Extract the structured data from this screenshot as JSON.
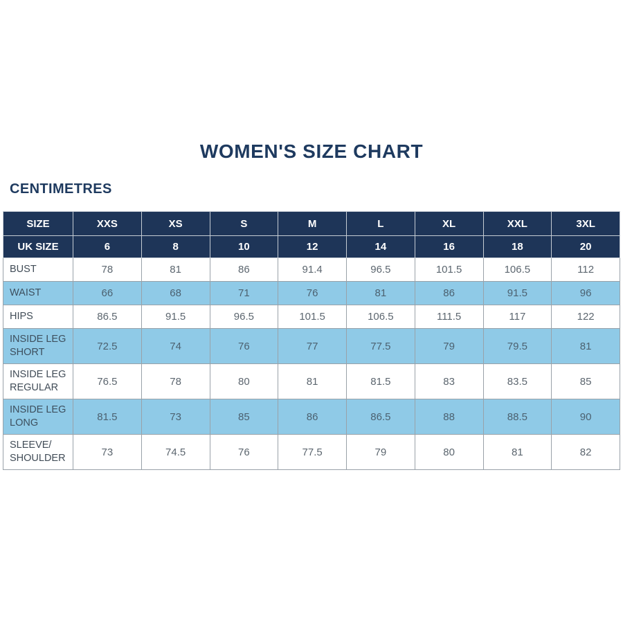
{
  "colors": {
    "header_navy": "#1e3558",
    "title_navy": "#1e3a5f",
    "highlight_blue": "#8fcae7",
    "grid_border": "#99a1a8"
  },
  "chart_data": {
    "type": "table",
    "title": "WOMEN'S SIZE CHART",
    "unit": "CENTIMETRES",
    "columns": [
      "SIZE",
      "XXS",
      "XS",
      "S",
      "M",
      "L",
      "XL",
      "XXL",
      "3XL"
    ],
    "uk_size_row": [
      "UK SIZE",
      "6",
      "8",
      "10",
      "12",
      "14",
      "16",
      "18",
      "20"
    ],
    "rows": [
      {
        "label": "BUST",
        "values": [
          "78",
          "81",
          "86",
          "91.4",
          "96.5",
          "101.5",
          "106.5",
          "112"
        ],
        "highlight": false
      },
      {
        "label": "WAIST",
        "values": [
          "66",
          "68",
          "71",
          "76",
          "81",
          "86",
          "91.5",
          "96"
        ],
        "highlight": true
      },
      {
        "label": "HIPS",
        "values": [
          "86.5",
          "91.5",
          "96.5",
          "101.5",
          "106.5",
          "111.5",
          "117",
          "122"
        ],
        "highlight": false
      },
      {
        "label": "INSIDE LEG SHORT",
        "values": [
          "72.5",
          "74",
          "76",
          "77",
          "77.5",
          "79",
          "79.5",
          "81"
        ],
        "highlight": true
      },
      {
        "label": "INSIDE LEG REGULAR",
        "values": [
          "76.5",
          "78",
          "80",
          "81",
          "81.5",
          "83",
          "83.5",
          "85"
        ],
        "highlight": false
      },
      {
        "label": "INSIDE LEG LONG",
        "values": [
          "81.5",
          "73",
          "85",
          "86",
          "86.5",
          "88",
          "88.5",
          "90"
        ],
        "highlight": true
      },
      {
        "label": "SLEEVE/ SHOULDER",
        "values": [
          "73",
          "74.5",
          "76",
          "77.5",
          "79",
          "80",
          "81",
          "82"
        ],
        "highlight": false
      }
    ]
  }
}
